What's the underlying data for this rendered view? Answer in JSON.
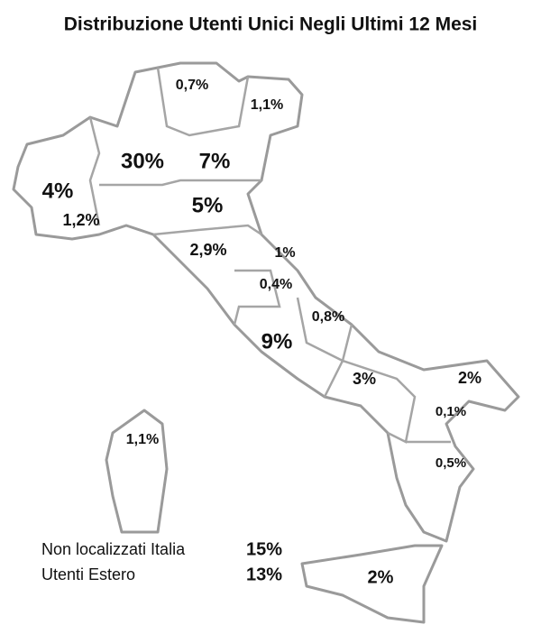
{
  "title": "Distribuzione Utenti Unici Negli Ultimi 12 Mesi",
  "region_labels": [
    "0,7%",
    "1,1%",
    "30%",
    "7%",
    "4%",
    "1,2%",
    "5%",
    "2,9%",
    "1%",
    "0,4%",
    "0,8%",
    "9%",
    "3%",
    "2%",
    "0,1%",
    "0,5%",
    "1,1%",
    "2%"
  ],
  "legend": [
    {
      "label": "Non localizzati Italia",
      "value": "15%"
    },
    {
      "label": "Utenti Estero",
      "value": "13%"
    }
  ]
}
